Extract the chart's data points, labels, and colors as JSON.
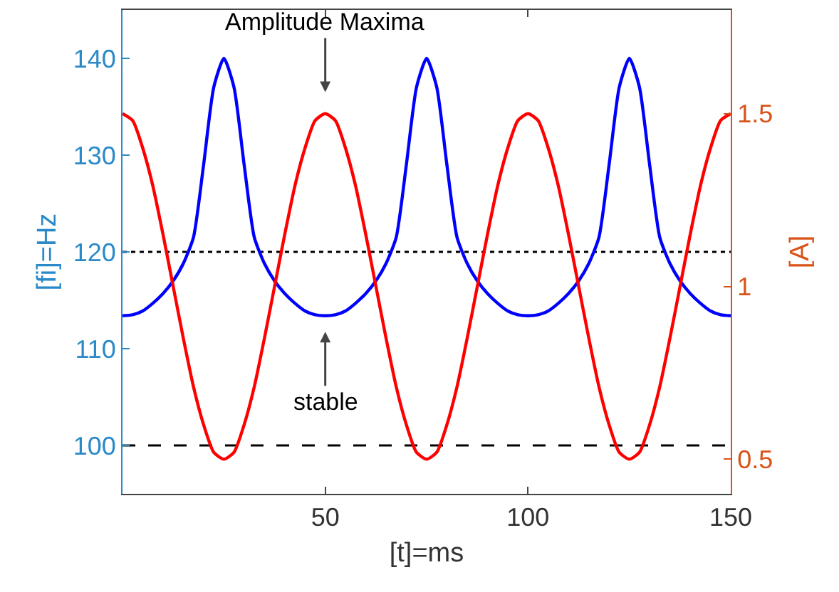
{
  "chart_data": {
    "type": "line",
    "xlabel": "[t]=ms",
    "ylabel": "[fi]=Hz",
    "y2label": "[A]",
    "x": [
      0,
      2.5,
      5,
      7.5,
      10,
      12.5,
      15,
      17.5,
      20,
      22.5,
      25,
      27.5,
      30,
      32.5,
      35,
      37.5,
      40,
      42.5,
      45,
      47.5,
      50,
      52.5,
      55,
      57.5,
      60,
      62.5,
      65,
      67.5,
      70,
      72.5,
      75,
      77.5,
      80,
      82.5,
      85,
      87.5,
      90,
      92.5,
      95,
      97.5,
      100,
      102.5,
      105,
      107.5,
      110,
      112.5,
      115,
      117.5,
      120,
      122.5,
      125,
      127.5,
      130,
      132.5,
      135,
      137.5,
      140,
      142.5,
      145,
      147.5,
      150
    ],
    "series": [
      {
        "color": "#0000ff",
        "axis": "y",
        "values": [
          113.4,
          113.5,
          113.9,
          114.7,
          115.7,
          117,
          118.8,
          121.5,
          129,
          137,
          140,
          137,
          129,
          121.5,
          118.8,
          117,
          115.7,
          114.7,
          113.9,
          113.5,
          113.4,
          113.5,
          113.9,
          114.7,
          115.7,
          117,
          118.8,
          121.5,
          129,
          137,
          140,
          137,
          129,
          121.5,
          118.8,
          117,
          115.7,
          114.7,
          113.9,
          113.5,
          113.4,
          113.5,
          113.9,
          114.7,
          115.7,
          117,
          118.8,
          121.5,
          129,
          137,
          140,
          137,
          129,
          121.5,
          118.8,
          117,
          115.7,
          114.7,
          113.9,
          113.5,
          113.4
        ]
      },
      {
        "color": "#ff0000",
        "axis": "y2",
        "values": [
          1.5,
          1.48,
          1.4,
          1.29,
          1.15,
          1,
          0.85,
          0.71,
          0.6,
          0.52,
          0.5,
          0.52,
          0.6,
          0.71,
          0.85,
          1,
          1.15,
          1.29,
          1.4,
          1.48,
          1.5,
          1.48,
          1.4,
          1.29,
          1.15,
          1,
          0.85,
          0.71,
          0.6,
          0.52,
          0.5,
          0.52,
          0.6,
          0.71,
          0.85,
          1,
          1.15,
          1.29,
          1.4,
          1.48,
          1.5,
          1.48,
          1.4,
          1.29,
          1.15,
          1,
          0.85,
          0.71,
          0.6,
          0.52,
          0.5,
          0.52,
          0.6,
          0.71,
          0.85,
          1,
          1.15,
          1.29,
          1.4,
          1.48,
          1.5
        ]
      }
    ],
    "xlim": [
      0,
      150
    ],
    "xticks": [
      50,
      100,
      150
    ],
    "ylim": [
      95,
      145
    ],
    "yticks": [
      100,
      110,
      120,
      130,
      140
    ],
    "y2lim": [
      0.4,
      1.8
    ],
    "y2ticks": [
      0.5,
      1,
      1.5
    ],
    "ref_lines": [
      {
        "axis": "y",
        "value": 120,
        "color": "#000000",
        "line_style": "dotted"
      },
      {
        "axis": "y",
        "value": 100,
        "color": "#000000",
        "line_style": "dashed"
      }
    ],
    "annotations": [
      "Amplitude Maxima",
      "stable"
    ]
  }
}
